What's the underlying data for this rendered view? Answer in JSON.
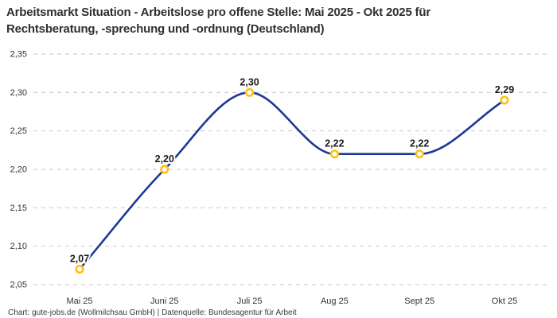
{
  "title": {
    "lines": [
      "Arbeitsmarkt Situation - Arbeitslose pro offene Stelle: Mai 2025 - Okt 2025 für",
      "Rechtsberatung, -sprechung und -ordnung (Deutschland)"
    ]
  },
  "footer": {
    "text": "Chart: gute-jobs.de (Wollmilchsau GmbH) | Datenquelle: Bundesagentur für Arbeit"
  },
  "chart_data": {
    "type": "line",
    "title": "Arbeitsmarkt Situation - Arbeitslose pro offene Stelle: Mai 2025 - Okt 2025 für Rechtsberatung, -sprechung und -ordnung (Deutschland)",
    "categories": [
      "Mai 25",
      "Juni 25",
      "Juli 25",
      "Aug 25",
      "Sept 25",
      "Okt 25"
    ],
    "values": [
      2.07,
      2.2,
      2.3,
      2.22,
      2.22,
      2.29
    ],
    "value_labels": [
      "2,07",
      "2,20",
      "2,30",
      "2,22",
      "2,22",
      "2,29"
    ],
    "xlabel": "",
    "ylabel": "",
    "ylim": [
      2.05,
      2.35
    ],
    "y_ticks": [
      2.05,
      2.1,
      2.15,
      2.2,
      2.25,
      2.3,
      2.35
    ],
    "y_tick_labels": [
      "2,05",
      "2,10",
      "2,15",
      "2,20",
      "2,25",
      "2,30",
      "2,35"
    ],
    "grid": "horizontal-dashed",
    "curve": "monotone",
    "legend": "none",
    "colors": {
      "line": "#1e3799",
      "marker_stroke": "#fdc112",
      "marker_fill": "#ffffff",
      "grid": "#c7c7c7",
      "tick_text": "#333333",
      "value_label_text": "#1a1a1a",
      "title_text": "#303030"
    }
  }
}
